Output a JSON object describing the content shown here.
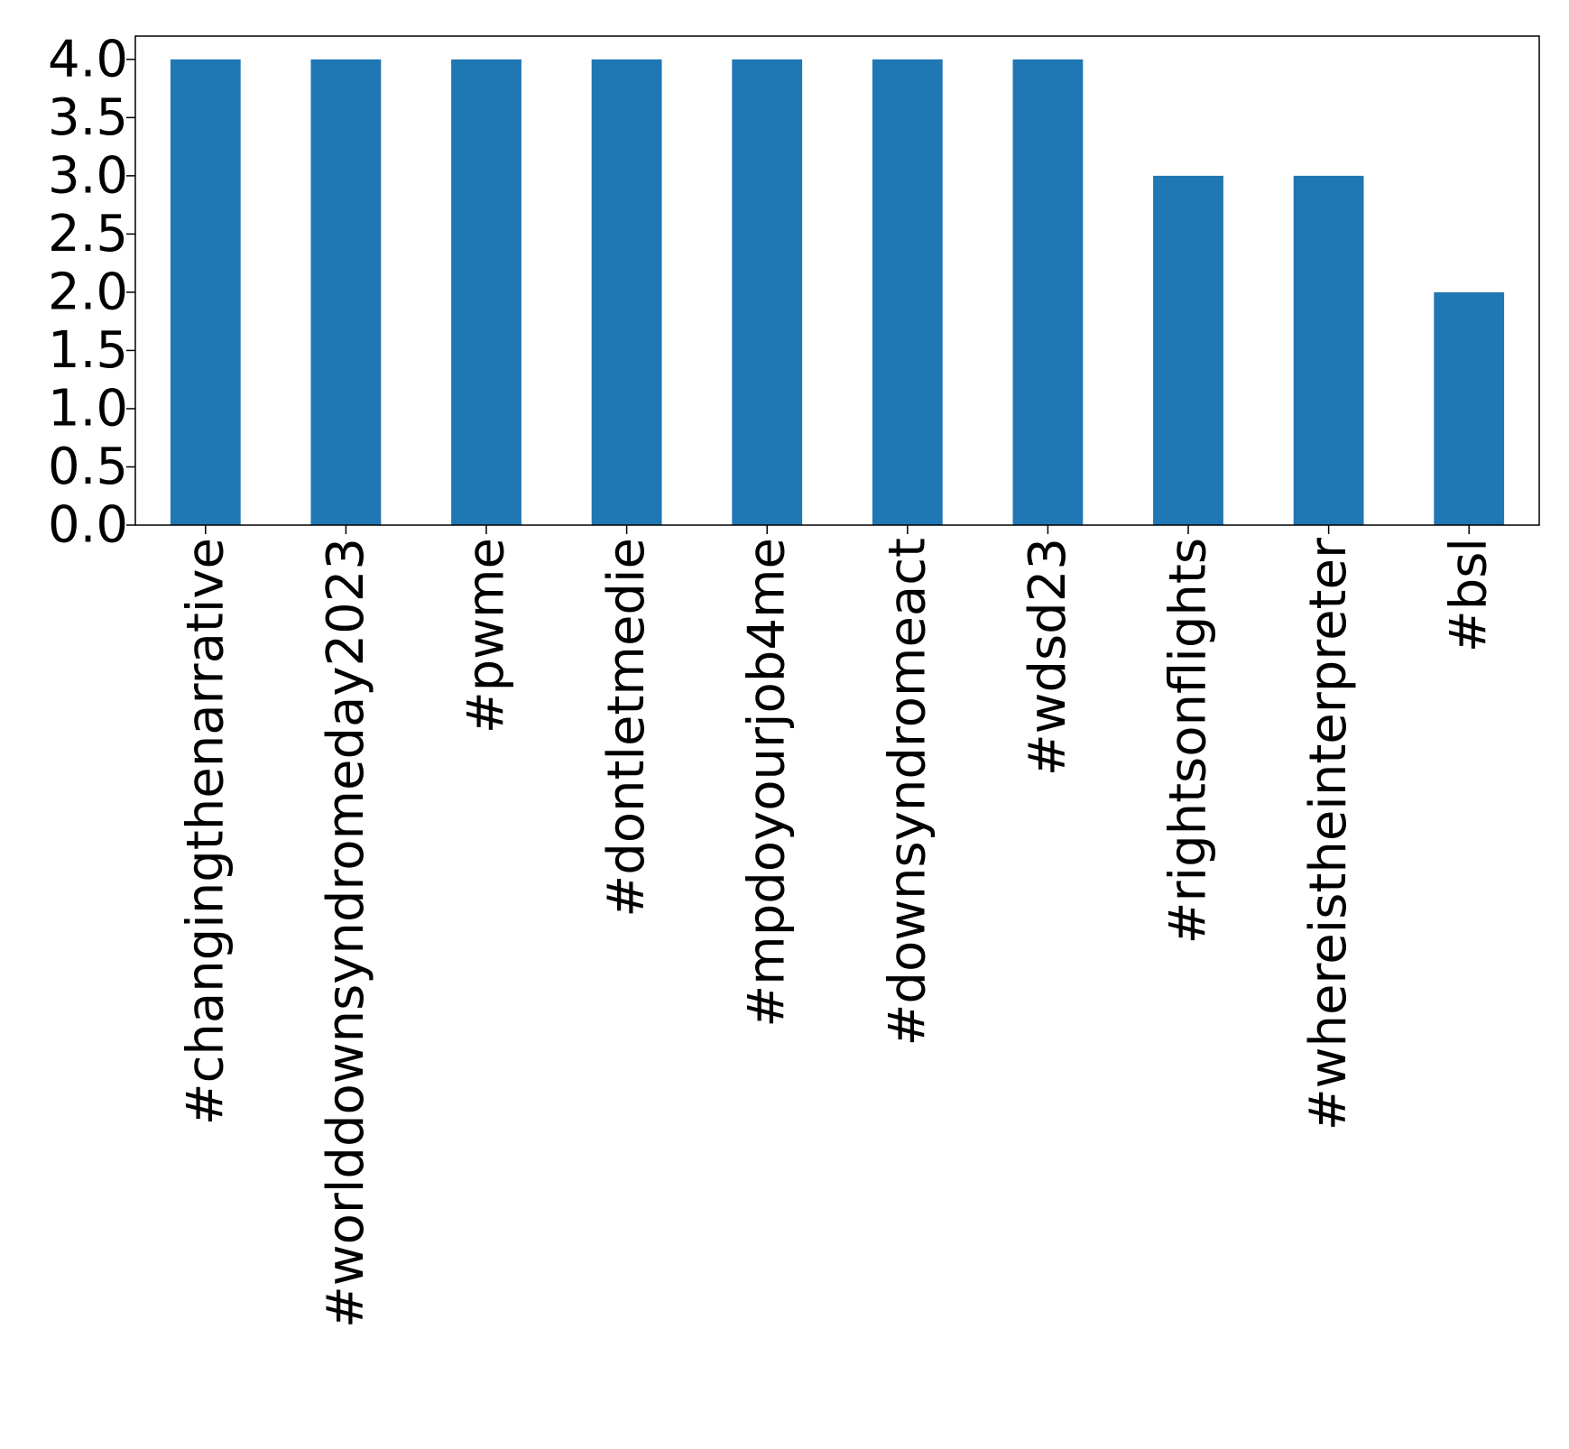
{
  "chart_data": {
    "type": "bar",
    "title": "",
    "xlabel": "",
    "ylabel": "",
    "categories": [
      "#changingthenarrative",
      "#worlddownsyndromeday2023",
      "#pwme",
      "#dontletmedie",
      "#mpdoyourjob4me",
      "#downsyndromeact",
      "#wdsd23",
      "#rightsonflights",
      "#whereistheinterpreter",
      "#bsl"
    ],
    "values": [
      4,
      4,
      4,
      4,
      4,
      4,
      4,
      3,
      3,
      2
    ],
    "ylim": [
      0,
      4.2
    ],
    "yticks": [
      "0.0",
      "0.5",
      "1.0",
      "1.5",
      "2.0",
      "2.5",
      "3.0",
      "3.5",
      "4.0"
    ],
    "bar_color": "#1f77b4",
    "grid": false,
    "legend": "none"
  }
}
